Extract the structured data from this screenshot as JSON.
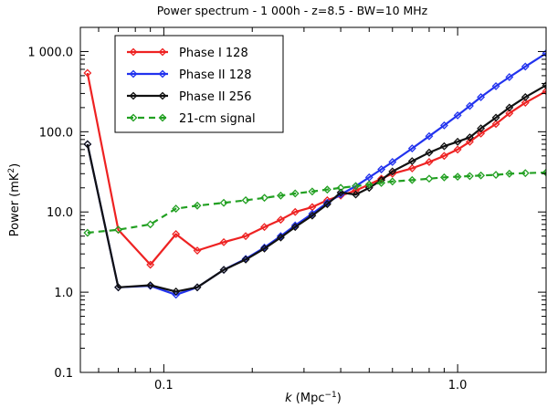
{
  "chart_data": {
    "type": "line",
    "title": "Power spectrum - 1 000h - z=8.5 - BW=10 MHz",
    "xlabel_italic": "k",
    "xlabel_rest": " (Mpc",
    "xlabel_sup": "−1",
    "xlabel_end": ")",
    "ylabel_main": "Power (mK",
    "ylabel_sup": "2",
    "ylabel_end": ")",
    "xscale": "log",
    "yscale": "log",
    "xlim": [
      0.052,
      2.0
    ],
    "ylim": [
      0.1,
      2000
    ],
    "xticks": [
      {
        "value": 0.1,
        "label": "0.1"
      },
      {
        "value": 1.0,
        "label": "1.0"
      }
    ],
    "yticks": [
      {
        "value": 0.1,
        "label": "0.1"
      },
      {
        "value": 1,
        "label": "1.0"
      },
      {
        "value": 10,
        "label": "10.0"
      },
      {
        "value": 100,
        "label": "100.0"
      },
      {
        "value": 1000,
        "label": "1 000.0"
      }
    ],
    "grid": false,
    "legend_position": "top-left",
    "series": [
      {
        "name": "Phase I 128",
        "color": "#ee2222",
        "dash": "",
        "x": [
          0.055,
          0.07,
          0.09,
          0.11,
          0.13,
          0.16,
          0.19,
          0.22,
          0.25,
          0.28,
          0.32,
          0.36,
          0.4,
          0.45,
          0.5,
          0.55,
          0.6,
          0.7,
          0.8,
          0.9,
          1.0,
          1.1,
          1.2,
          1.35,
          1.5,
          1.7,
          2.0
        ],
        "y": [
          540,
          6.0,
          2.2,
          5.3,
          3.3,
          4.2,
          5.0,
          6.5,
          8.0,
          10.0,
          11.5,
          14.0,
          16.0,
          18.5,
          22.0,
          26.0,
          30.0,
          35.0,
          42.0,
          50.0,
          60.0,
          75.0,
          95.0,
          125.0,
          170.0,
          230.0,
          320.0
        ]
      },
      {
        "name": "Phase II 128",
        "color": "#2233ee",
        "dash": "",
        "x": [
          0.055,
          0.07,
          0.09,
          0.11,
          0.13,
          0.16,
          0.19,
          0.22,
          0.25,
          0.28,
          0.32,
          0.36,
          0.4,
          0.45,
          0.5,
          0.55,
          0.6,
          0.7,
          0.8,
          0.9,
          1.0,
          1.1,
          1.2,
          1.35,
          1.5,
          1.7,
          2.0
        ],
        "y": [
          70,
          1.15,
          1.2,
          0.93,
          1.15,
          1.9,
          2.6,
          3.6,
          5.0,
          6.8,
          9.5,
          13.0,
          16.5,
          21.0,
          27.0,
          34.0,
          42.0,
          62.0,
          88.0,
          120.0,
          160.0,
          210.0,
          270.0,
          370.0,
          480.0,
          650.0,
          950.0
        ]
      },
      {
        "name": "Phase II 256",
        "color": "#111111",
        "dash": "",
        "x": [
          0.055,
          0.07,
          0.09,
          0.11,
          0.13,
          0.16,
          0.19,
          0.22,
          0.25,
          0.28,
          0.32,
          0.36,
          0.4,
          0.45,
          0.5,
          0.55,
          0.6,
          0.7,
          0.8,
          0.9,
          1.0,
          1.1,
          1.2,
          1.35,
          1.5,
          1.7,
          2.0
        ],
        "y": [
          70,
          1.15,
          1.22,
          1.02,
          1.15,
          1.9,
          2.55,
          3.5,
          4.8,
          6.5,
          9.0,
          12.5,
          17.5,
          16.5,
          20.0,
          25.0,
          32.0,
          43.0,
          55.0,
          66.0,
          75.0,
          85.0,
          110.0,
          150.0,
          200.0,
          270.0,
          380.0
        ]
      },
      {
        "name": "21-cm signal",
        "color": "#22a022",
        "dash": "7,5",
        "x": [
          0.055,
          0.07,
          0.09,
          0.11,
          0.13,
          0.16,
          0.19,
          0.22,
          0.25,
          0.28,
          0.32,
          0.36,
          0.4,
          0.45,
          0.5,
          0.55,
          0.6,
          0.7,
          0.8,
          0.9,
          1.0,
          1.1,
          1.2,
          1.35,
          1.5,
          1.7,
          2.0
        ],
        "y": [
          5.5,
          6.0,
          7.0,
          11.0,
          12.0,
          13.0,
          14.0,
          15.0,
          16.0,
          17.0,
          18.0,
          19.0,
          20.0,
          21.0,
          22.0,
          23.0,
          24.0,
          25.0,
          26.0,
          27.0,
          27.5,
          28.0,
          28.5,
          29.0,
          30.0,
          30.5,
          31.0
        ]
      }
    ]
  }
}
